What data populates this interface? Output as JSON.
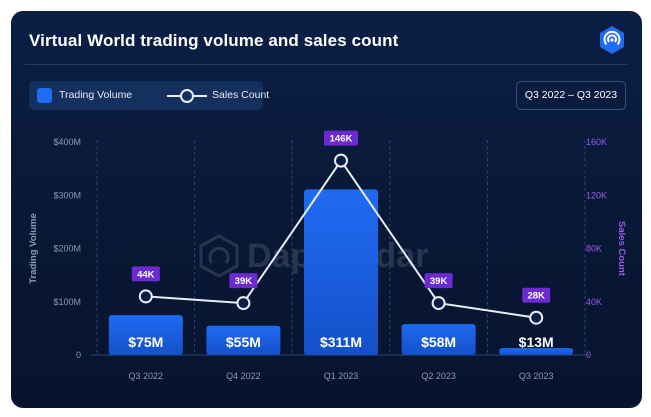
{
  "title": "Virtual World trading volume and sales count",
  "date_range": "Q3 2022 – Q3 2023",
  "watermark": "DappRadar",
  "logo_icon": "dappradar-logo-icon",
  "legend": {
    "bar_label": "Trading Volume",
    "line_label": "Sales Count"
  },
  "colors": {
    "bar": "#1f6bf2",
    "bar_dark": "#1550c9",
    "line": "#e8edf7",
    "badge": "#6b2bd0",
    "right_axis": "#9a5cf0",
    "left_axis": "#8e9ab5",
    "logo": "#1f6bf2"
  },
  "chart_data": {
    "type": "bar",
    "title": "Virtual World trading volume and sales count",
    "categories": [
      "Q3 2022",
      "Q4 2022",
      "Q1 2023",
      "Q2 2023",
      "Q3 2023"
    ],
    "series": [
      {
        "name": "Trading Volume",
        "type": "bar",
        "axis": "left",
        "values": [
          75,
          55,
          311,
          58,
          13
        ],
        "labels": [
          "$75M",
          "$55M",
          "$311M",
          "$58M",
          "$13M"
        ]
      },
      {
        "name": "Sales Count",
        "type": "line",
        "axis": "right",
        "values": [
          44,
          39,
          146,
          39,
          28
        ],
        "labels": [
          "44K",
          "39K",
          "146K",
          "39K",
          "28K"
        ]
      }
    ],
    "ylabel": "Trading Volume",
    "y2label": "Sales Count",
    "ylim": [
      0,
      400
    ],
    "y2lim": [
      0,
      160
    ],
    "yticks": [
      {
        "value": 0,
        "label": "0"
      },
      {
        "value": 100,
        "label": "$100M"
      },
      {
        "value": 200,
        "label": "$200M"
      },
      {
        "value": 300,
        "label": "$300M"
      },
      {
        "value": 400,
        "label": "$400M"
      }
    ],
    "y2ticks": [
      {
        "value": 0,
        "label": "0"
      },
      {
        "value": 40,
        "label": "40K"
      },
      {
        "value": 80,
        "label": "80K"
      },
      {
        "value": 120,
        "label": "120K"
      },
      {
        "value": 160,
        "label": "160K"
      }
    ],
    "grid": "vertical dashed"
  }
}
